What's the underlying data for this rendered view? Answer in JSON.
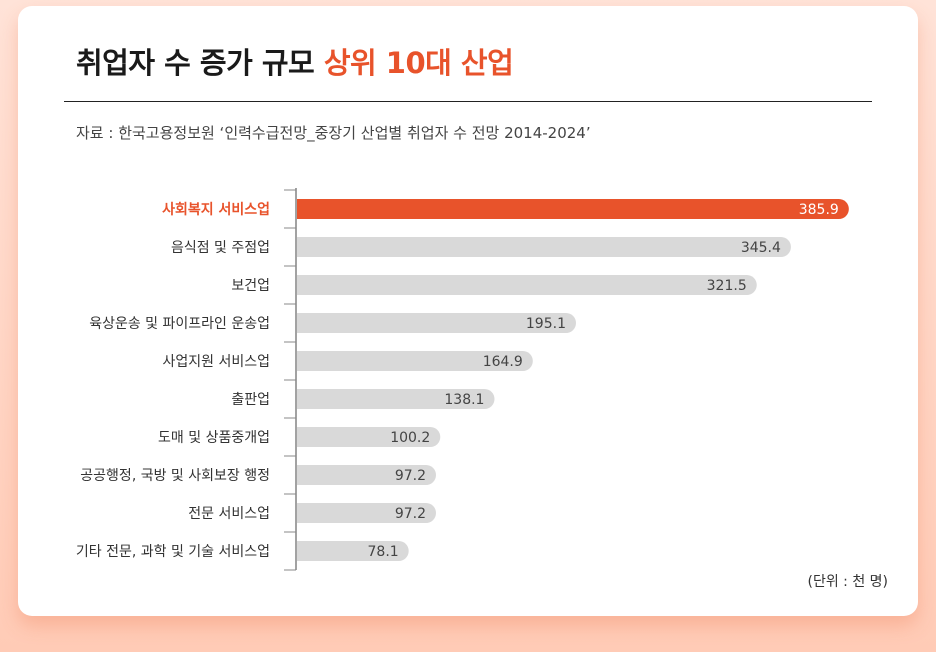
{
  "title": {
    "prefix": "취업자 수 증가 규모 ",
    "highlight": "상위 10대 산업"
  },
  "source": "자료 : 한국고용정보원 ‘인력수급전망_중장기 산업별 취업자 수 전망 2014-2024’",
  "unit": "(단위 : 천 명)",
  "colors": {
    "highlight": "#e8532b",
    "bar": "#d9d9d9",
    "highlight_text": "#ffffff",
    "value_text": "#444444"
  },
  "chart_data": {
    "type": "bar",
    "orientation": "horizontal",
    "categories": [
      "사회복지 서비스업",
      "음식점 및 주점업",
      "보건업",
      "육상운송 및 파이프라인 운송업",
      "사업지원 서비스업",
      "출판업",
      "도매 및 상품중개업",
      "공공행정, 국방 및 사회보장 행정",
      "전문 서비스업",
      "기타 전문, 과학 및 기술 서비스업"
    ],
    "values": [
      385.9,
      345.4,
      321.5,
      195.1,
      164.9,
      138.1,
      100.2,
      97.2,
      97.2,
      78.1
    ],
    "highlight_index": 0,
    "xlim": [
      0,
      400
    ]
  }
}
